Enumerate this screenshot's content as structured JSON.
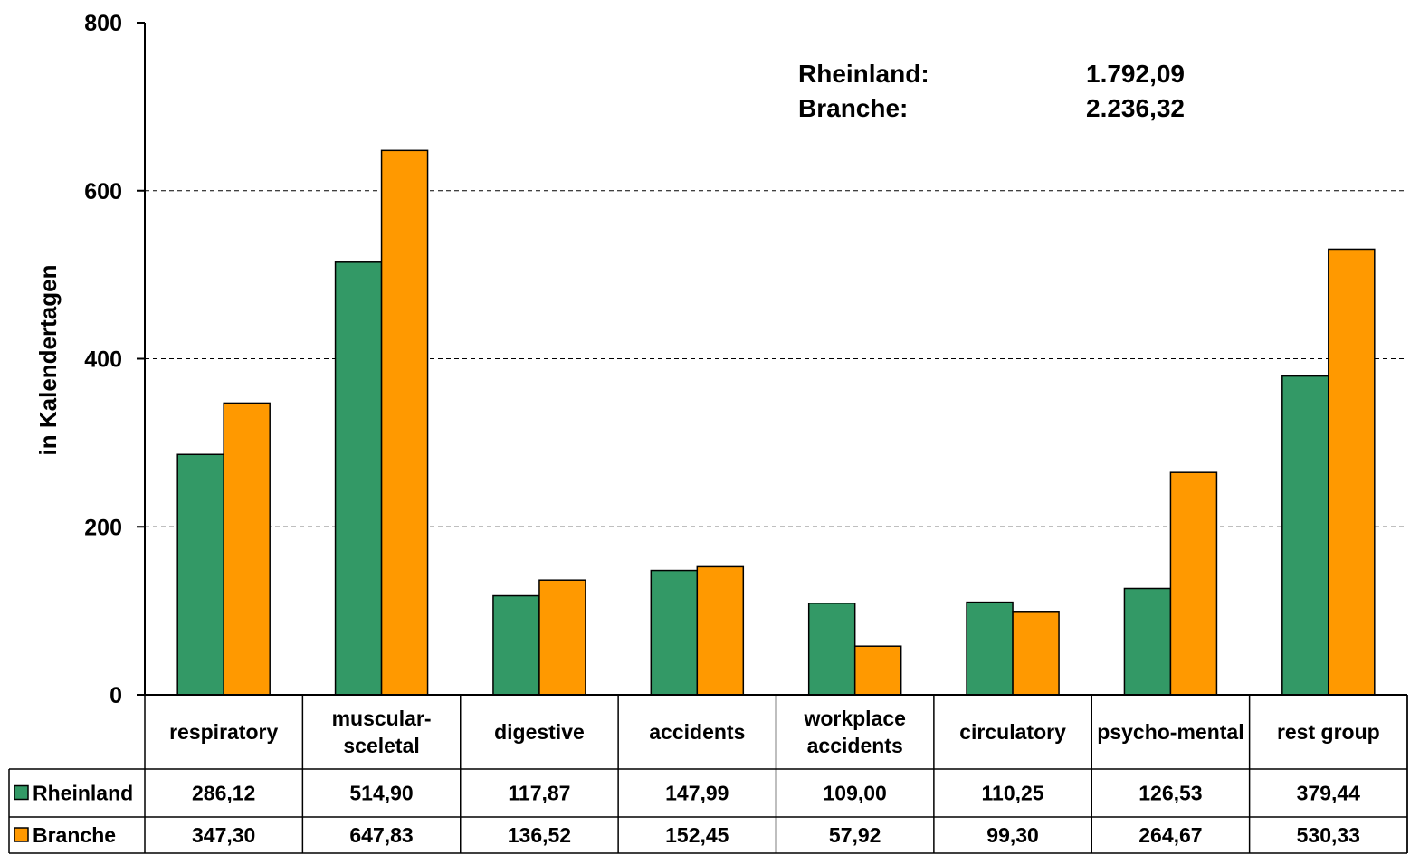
{
  "chart_data": {
    "type": "bar",
    "ylabel": "in Kalendertagen",
    "ylim": [
      0,
      800
    ],
    "yticks": [
      0,
      200,
      400,
      600,
      800
    ],
    "grid": "horizontal-dashed",
    "categories": [
      [
        "respiratory"
      ],
      [
        "muscular-",
        "sceletal"
      ],
      [
        "digestive"
      ],
      [
        "accidents"
      ],
      [
        "workplace",
        "accidents"
      ],
      [
        "circulatory"
      ],
      [
        "psycho-mental"
      ],
      [
        "rest group"
      ]
    ],
    "series": [
      {
        "name": "Rheinland",
        "color": "#339966",
        "values": [
          286.12,
          514.9,
          117.87,
          147.99,
          109.0,
          110.25,
          126.53,
          379.44
        ],
        "labels": [
          "286,12",
          "514,90",
          "117,87",
          "147,99",
          "109,00",
          "110,25",
          "126,53",
          "379,44"
        ]
      },
      {
        "name": "Branche",
        "color": "#FF9900",
        "values": [
          347.3,
          647.83,
          136.52,
          152.45,
          57.92,
          99.3,
          264.67,
          530.33
        ],
        "labels": [
          "347,30",
          "647,83",
          "136,52",
          "152,45",
          "57,92",
          "99,30",
          "264,67",
          "530,33"
        ]
      }
    ],
    "annotations": [
      {
        "label": "Rheinland:",
        "value": "1.792,09"
      },
      {
        "label": "Branche:",
        "value": "2.236,32"
      }
    ],
    "data_table": true
  }
}
